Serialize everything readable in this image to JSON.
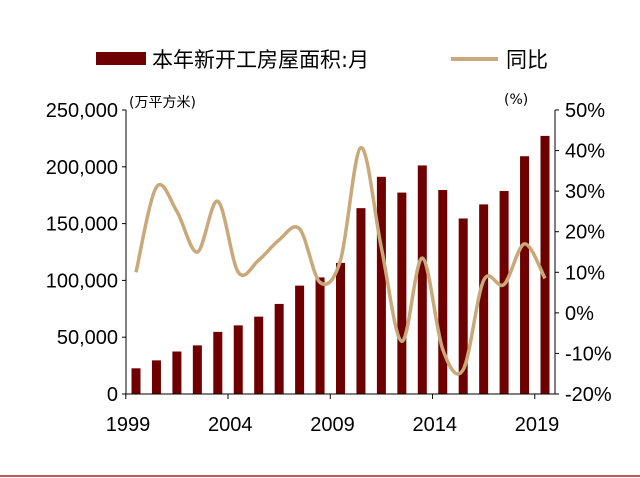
{
  "chart_data": {
    "type": "bar+line",
    "categories": [
      "1999",
      "2000",
      "2001",
      "2002",
      "2003",
      "2004",
      "2005",
      "2006",
      "2007",
      "2008",
      "2009",
      "2010",
      "2011",
      "2012",
      "2013",
      "2014",
      "2015",
      "2016",
      "2017",
      "2018",
      "2019"
    ],
    "x_tick_labels": [
      "1999",
      "2004",
      "2009",
      "2014",
      "2019"
    ],
    "series": [
      {
        "name": "本年新开工房屋面积:月",
        "type": "bar",
        "axis": "left",
        "color": "#6e0000",
        "values": [
          22600,
          29600,
          37400,
          42800,
          54700,
          60400,
          68100,
          79300,
          95400,
          102600,
          115400,
          163600,
          191200,
          177300,
          201200,
          179600,
          154500,
          166900,
          178700,
          209300,
          227200
        ]
      },
      {
        "name": "同比",
        "type": "line",
        "axis": "right",
        "color": "#c9a97a",
        "values": [
          10,
          31,
          25,
          15,
          27.5,
          10,
          13,
          18,
          20.7,
          7.5,
          13,
          40.7,
          16,
          -7,
          13.5,
          -9,
          -14,
          8,
          7,
          17,
          8.5
        ]
      }
    ],
    "left_axis": {
      "unit_label": "(万平方米)",
      "ylim": [
        0,
        250000
      ],
      "tick_labels": [
        "0",
        "50,000",
        "100,000",
        "150,000",
        "200,000",
        "250,000"
      ]
    },
    "right_axis": {
      "unit_label": "(%)",
      "ylim": [
        -20,
        50
      ],
      "tick_labels": [
        "-20%",
        "-10%",
        "0%",
        "10%",
        "20%",
        "30%",
        "40%",
        "50%"
      ]
    },
    "legend_placement": "top",
    "grid": false
  }
}
